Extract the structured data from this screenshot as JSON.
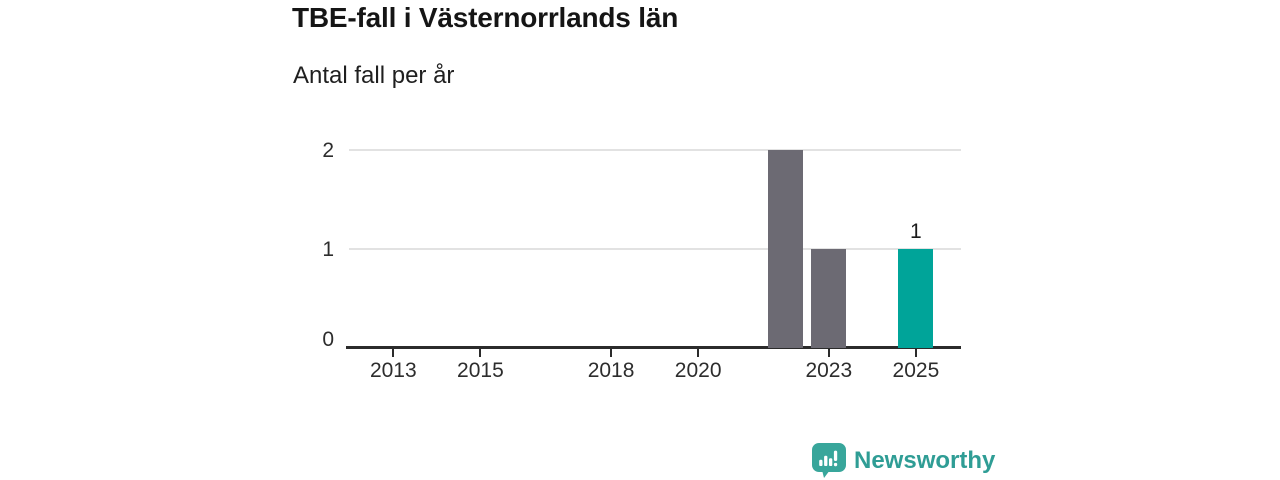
{
  "chart": {
    "title": "TBE-fall i Västernorrlands län",
    "subtitle": "Antal fall per år"
  },
  "brand": {
    "name": "Newsworthy"
  },
  "colors": {
    "bar_default": "#6c6a73",
    "bar_highlight": "#00a499",
    "gridline": "#e2e2e2",
    "axis": "#2b2b2b",
    "brand_teal": "#38a69b",
    "brand_text_teal": "#2f9d95"
  },
  "chart_data": {
    "type": "bar",
    "title": "TBE-fall i Västernorrlands län",
    "subtitle": "Antal fall per år",
    "x": [
      2012,
      2013,
      2014,
      2015,
      2016,
      2017,
      2018,
      2019,
      2020,
      2021,
      2022,
      2023,
      2024,
      2025
    ],
    "values": [
      0,
      0,
      0,
      0,
      0,
      0,
      0,
      0,
      0,
      0,
      2,
      1,
      0,
      1
    ],
    "highlight_x": 2025,
    "annotations": [
      {
        "x": 2025,
        "label": "1"
      }
    ],
    "xticks": [
      "2013",
      "2015",
      "2018",
      "2020",
      "2023",
      "2025"
    ],
    "yticks": [
      "0",
      "1",
      "2"
    ],
    "ylim": [
      0,
      2
    ],
    "xlabel": "",
    "ylabel": "Antal fall per år",
    "grid": "horizontal",
    "legend": "none"
  }
}
